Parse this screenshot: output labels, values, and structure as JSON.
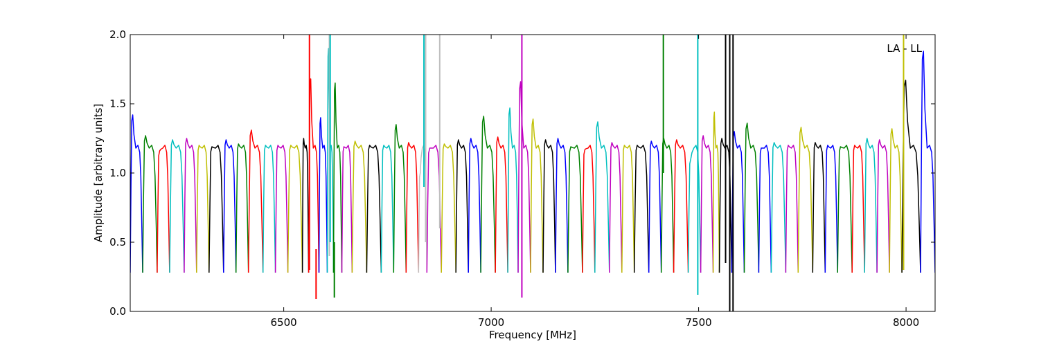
{
  "chart_data": {
    "type": "line",
    "annotation": "LA - LL",
    "xlabel": "Frequency [MHz]",
    "ylabel": "Amplitude [arbitrary units]",
    "xlim": [
      6130,
      8070
    ],
    "ylim": [
      0.0,
      2.0
    ],
    "xticks": [
      6500,
      7000,
      7500,
      8000
    ],
    "yticks": [
      0.0,
      0.5,
      1.0,
      1.5,
      2.0
    ],
    "ytick_labels": [
      "0.0",
      "0.5",
      "1.0",
      "1.5",
      "2.0"
    ],
    "grid": false,
    "legend": "none",
    "band_shape": {
      "edge_low": 0.28,
      "plateau": 1.18
    },
    "color_cycle": [
      "#0000ff",
      "#008000",
      "#ff0000",
      "#00bfbf",
      "#bf00bf",
      "#bfbf00",
      "#000000"
    ],
    "flagged_color": "#bfbfbf",
    "windows": [
      {
        "x0": 6130,
        "x1": 6160,
        "color": "#0000ff",
        "peak": 1.42
      },
      {
        "x0": 6160,
        "x1": 6195,
        "color": "#008000",
        "peak": 1.27
      },
      {
        "x0": 6195,
        "x1": 6225,
        "color": "#ff0000",
        "peak": 1.16
      },
      {
        "x0": 6225,
        "x1": 6260,
        "color": "#00bfbf",
        "peak": 1.24
      },
      {
        "x0": 6260,
        "x1": 6290,
        "color": "#bf00bf",
        "peak": 1.25
      },
      {
        "x0": 6290,
        "x1": 6320,
        "color": "#bfbf00",
        "peak": 1.2
      },
      {
        "x0": 6320,
        "x1": 6355,
        "color": "#000000",
        "peak": 1.19
      },
      {
        "x0": 6355,
        "x1": 6385,
        "color": "#0000ff",
        "peak": 1.24
      },
      {
        "x0": 6385,
        "x1": 6415,
        "color": "#008000",
        "peak": 1.21
      },
      {
        "x0": 6415,
        "x1": 6450,
        "color": "#ff0000",
        "peak": 1.31
      },
      {
        "x0": 6450,
        "x1": 6480,
        "color": "#00bfbf",
        "peak": 1.2
      },
      {
        "x0": 6480,
        "x1": 6510,
        "color": "#bf00bf",
        "peak": 1.2
      },
      {
        "x0": 6510,
        "x1": 6545,
        "color": "#bfbf00",
        "peak": 1.2
      },
      {
        "x0": 6545,
        "x1": 6560,
        "color": "#000000",
        "peak": 1.25
      },
      {
        "x0": 6560,
        "x1": 6585,
        "color": "#ff0000",
        "peak": 1.68
      },
      {
        "x0": 6585,
        "x1": 6605,
        "color": "#0000ff",
        "peak": 1.4
      },
      {
        "x0": 6605,
        "x1": 6620,
        "color": "#00bfbf",
        "peak": 1.9
      },
      {
        "x0": 6620,
        "x1": 6640,
        "color": "#008000",
        "peak": 1.65
      },
      {
        "x0": 6640,
        "x1": 6665,
        "color": "#bf00bf",
        "peak": 1.19
      },
      {
        "x0": 6665,
        "x1": 6700,
        "color": "#bfbf00",
        "peak": 1.23
      },
      {
        "x0": 6700,
        "x1": 6735,
        "color": "#000000",
        "peak": 1.2
      },
      {
        "x0": 6735,
        "x1": 6765,
        "color": "#00bfbf",
        "peak": 1.2
      },
      {
        "x0": 6765,
        "x1": 6795,
        "color": "#008000",
        "peak": 1.35
      },
      {
        "x0": 6795,
        "x1": 6825,
        "color": "#ff0000",
        "peak": 1.22
      },
      {
        "x0": 6825,
        "x1": 6845,
        "color": "#bfbfbf",
        "peak": 1.0
      },
      {
        "x0": 6845,
        "x1": 6880,
        "color": "#bf00bf",
        "peak": 1.18
      },
      {
        "x0": 6880,
        "x1": 6915,
        "color": "#bfbf00",
        "peak": 1.21
      },
      {
        "x0": 6915,
        "x1": 6945,
        "color": "#000000",
        "peak": 1.24
      },
      {
        "x0": 6945,
        "x1": 6975,
        "color": "#0000ff",
        "peak": 1.25
      },
      {
        "x0": 6975,
        "x1": 7010,
        "color": "#008000",
        "peak": 1.41
      },
      {
        "x0": 7010,
        "x1": 7040,
        "color": "#ff0000",
        "peak": 1.26
      },
      {
        "x0": 7040,
        "x1": 7065,
        "color": "#00bfbf",
        "peak": 1.47
      },
      {
        "x0": 7065,
        "x1": 7095,
        "color": "#bf00bf",
        "peak": 1.66
      },
      {
        "x0": 7095,
        "x1": 7125,
        "color": "#bfbf00",
        "peak": 1.39
      },
      {
        "x0": 7125,
        "x1": 7155,
        "color": "#000000",
        "peak": 1.24
      },
      {
        "x0": 7155,
        "x1": 7185,
        "color": "#0000ff",
        "peak": 1.25
      },
      {
        "x0": 7185,
        "x1": 7220,
        "color": "#008000",
        "peak": 1.19
      },
      {
        "x0": 7220,
        "x1": 7250,
        "color": "#ff0000",
        "peak": 1.17
      },
      {
        "x0": 7250,
        "x1": 7285,
        "color": "#00bfbf",
        "peak": 1.37
      },
      {
        "x0": 7285,
        "x1": 7315,
        "color": "#bf00bf",
        "peak": 1.22
      },
      {
        "x0": 7315,
        "x1": 7345,
        "color": "#bfbf00",
        "peak": 1.2
      },
      {
        "x0": 7345,
        "x1": 7380,
        "color": "#000000",
        "peak": 1.2
      },
      {
        "x0": 7380,
        "x1": 7410,
        "color": "#0000ff",
        "peak": 1.23
      },
      {
        "x0": 7410,
        "x1": 7440,
        "color": "#008000",
        "peak": 1.25
      },
      {
        "x0": 7440,
        "x1": 7475,
        "color": "#ff0000",
        "peak": 1.24
      },
      {
        "x0": 7475,
        "x1": 7505,
        "color": "#00bfbf",
        "peak": 1.1
      },
      {
        "x0": 7505,
        "x1": 7535,
        "color": "#bf00bf",
        "peak": 1.27
      },
      {
        "x0": 7535,
        "x1": 7550,
        "color": "#bfbf00",
        "peak": 1.44
      },
      {
        "x0": 7550,
        "x1": 7580,
        "color": "#000000",
        "peak": 1.25
      },
      {
        "x0": 7580,
        "x1": 7610,
        "color": "#0000ff",
        "peak": 1.3
      },
      {
        "x0": 7610,
        "x1": 7645,
        "color": "#008000",
        "peak": 1.36
      },
      {
        "x0": 7645,
        "x1": 7675,
        "color": "#0000ff",
        "peak": 1.18
      },
      {
        "x0": 7675,
        "x1": 7710,
        "color": "#00bfbf",
        "peak": 1.22
      },
      {
        "x0": 7710,
        "x1": 7740,
        "color": "#bf00bf",
        "peak": 1.2
      },
      {
        "x0": 7740,
        "x1": 7775,
        "color": "#bfbf00",
        "peak": 1.33
      },
      {
        "x0": 7775,
        "x1": 7805,
        "color": "#000000",
        "peak": 1.22
      },
      {
        "x0": 7805,
        "x1": 7835,
        "color": "#0000ff",
        "peak": 1.2
      },
      {
        "x0": 7835,
        "x1": 7870,
        "color": "#008000",
        "peak": 1.19
      },
      {
        "x0": 7870,
        "x1": 7900,
        "color": "#ff0000",
        "peak": 1.2
      },
      {
        "x0": 7900,
        "x1": 7930,
        "color": "#00bfbf",
        "peak": 1.25
      },
      {
        "x0": 7930,
        "x1": 7960,
        "color": "#bf00bf",
        "peak": 1.24
      },
      {
        "x0": 7960,
        "x1": 7990,
        "color": "#bfbf00",
        "peak": 1.32
      },
      {
        "x0": 7990,
        "x1": 8035,
        "color": "#000000",
        "peak": 1.67
      },
      {
        "x0": 8035,
        "x1": 8070,
        "color": "#0000ff",
        "peak": 1.88
      }
    ],
    "spikes": [
      {
        "x": 6562,
        "y0": 0.3,
        "y1": 2.0,
        "color": "#ff0000"
      },
      {
        "x": 6578,
        "y0": 0.09,
        "y1": 0.45,
        "color": "#ff0000"
      },
      {
        "x": 6610,
        "y0": 0.4,
        "y1": 2.0,
        "color": "#bfbfbf"
      },
      {
        "x": 6612,
        "y0": 0.5,
        "y1": 2.0,
        "color": "#00bfbf"
      },
      {
        "x": 6622,
        "y0": 0.1,
        "y1": 0.5,
        "color": "#008000"
      },
      {
        "x": 6838,
        "y0": 0.9,
        "y1": 2.0,
        "color": "#00bfbf"
      },
      {
        "x": 6842,
        "y0": 0.5,
        "y1": 2.0,
        "color": "#bfbfbf"
      },
      {
        "x": 6876,
        "y0": 0.6,
        "y1": 2.0,
        "color": "#bfbfbf"
      },
      {
        "x": 7074,
        "y0": 0.1,
        "y1": 2.0,
        "color": "#bf00bf"
      },
      {
        "x": 7415,
        "y0": 1.0,
        "y1": 2.0,
        "color": "#008000"
      },
      {
        "x": 7498,
        "y0": 0.12,
        "y1": 2.0,
        "color": "#00bfbf"
      },
      {
        "x": 7565,
        "y0": 0.35,
        "y1": 2.0,
        "color": "#000000"
      },
      {
        "x": 7575,
        "y0": 0.0,
        "y1": 2.0,
        "color": "#000000"
      },
      {
        "x": 7583,
        "y0": 0.0,
        "y1": 2.0,
        "color": "#000000"
      },
      {
        "x": 7994,
        "y0": 0.3,
        "y1": 2.0,
        "color": "#bfbf00"
      }
    ]
  }
}
